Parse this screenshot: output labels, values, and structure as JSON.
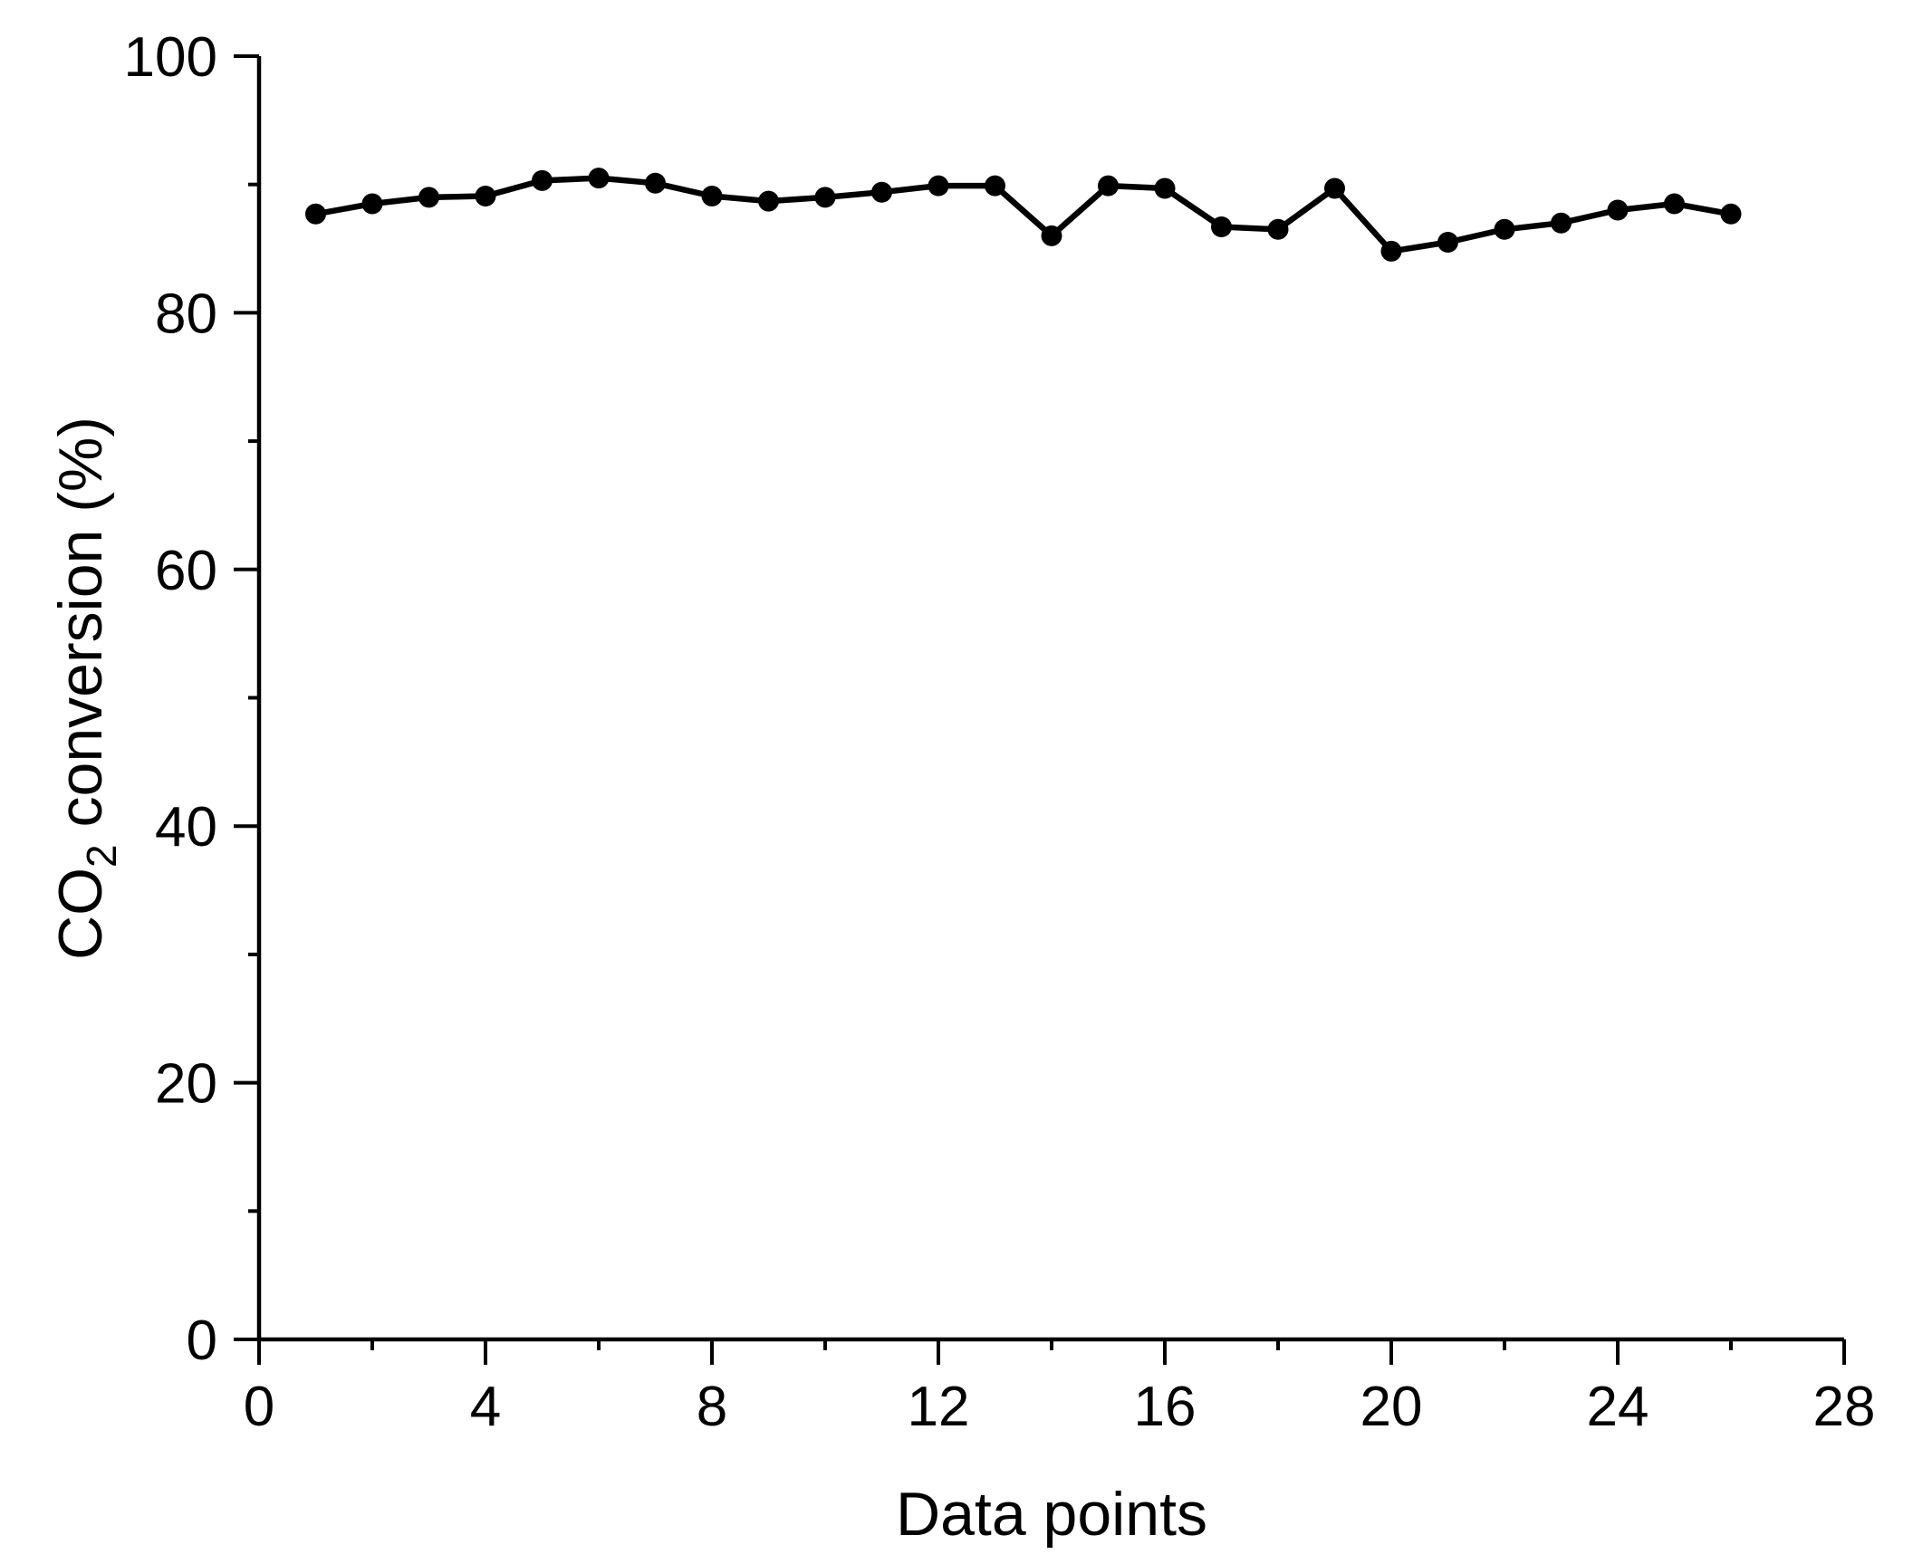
{
  "page": {
    "background": "#ffffff"
  },
  "chart_data": {
    "type": "line",
    "title": "",
    "xlabel": "Data points",
    "ylabel": "CO2 conversion (%)",
    "ylabel_rich": [
      {
        "text": "CO",
        "sub": false
      },
      {
        "text": "2",
        "sub": true
      },
      {
        "text": " conversion (%)",
        "sub": false
      }
    ],
    "x": [
      1,
      2,
      3,
      4,
      5,
      6,
      7,
      8,
      9,
      10,
      11,
      12,
      13,
      14,
      15,
      16,
      17,
      18,
      19,
      20,
      21,
      22,
      23,
      24,
      25,
      26
    ],
    "series": [
      {
        "name": "CO2 conversion",
        "marker": "filled-circle",
        "color": "#000000",
        "values": [
          87.7,
          88.5,
          89.0,
          89.1,
          90.3,
          90.5,
          90.1,
          89.1,
          88.7,
          89.0,
          89.4,
          89.9,
          89.9,
          86.0,
          89.9,
          89.7,
          86.7,
          86.5,
          89.7,
          84.8,
          85.5,
          86.5,
          87.0,
          88.0,
          88.5,
          87.7
        ]
      }
    ],
    "xlim": [
      0,
      28
    ],
    "ylim": [
      0,
      100
    ],
    "x_major_ticks": [
      0,
      4,
      8,
      12,
      16,
      20,
      24,
      28
    ],
    "x_minor_ticks": [
      2,
      6,
      10,
      14,
      18,
      22,
      26
    ],
    "y_major_ticks": [
      0,
      20,
      40,
      60,
      80,
      100
    ],
    "y_minor_ticks": [
      10,
      30,
      50,
      70,
      90
    ],
    "grid": false,
    "legend_position": "none",
    "axis_color": "#000000",
    "text_color": "#000000",
    "background": "#ffffff"
  }
}
